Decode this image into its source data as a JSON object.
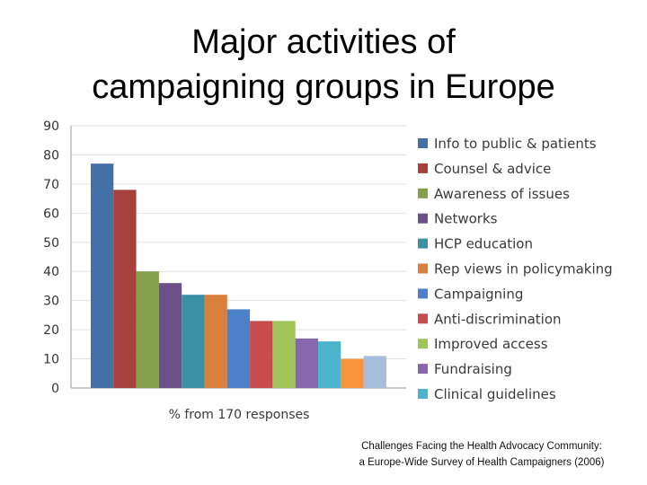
{
  "slide": {
    "title_line1": "Major activities of",
    "title_line2": "campaigning groups in Europe",
    "source_line1": "Challenges Facing the Health Advocacy Community:",
    "source_line2": "a Europe-Wide Survey of Health Campaigners (2006)"
  },
  "chart_data": {
    "type": "bar",
    "title": "",
    "xlabel": "% from 170 responses",
    "ylabel": "",
    "ylim": [
      0,
      90
    ],
    "yticks": [
      0,
      10,
      20,
      30,
      40,
      50,
      60,
      70,
      80,
      90
    ],
    "grid": true,
    "legend_position": "right",
    "series": [
      {
        "name": "Info to public & patients",
        "value": 77,
        "color": "#4470a8"
      },
      {
        "name": "Counsel & advice",
        "value": 68,
        "color": "#a8403c"
      },
      {
        "name": "Awareness of issues",
        "value": 40,
        "color": "#84a04a"
      },
      {
        "name": "Networks",
        "value": 36,
        "color": "#6c5088"
      },
      {
        "name": "HCP education",
        "value": 32,
        "color": "#3c90a4"
      },
      {
        "name": "Rep views in policymaking",
        "value": 32,
        "color": "#d8803c"
      },
      {
        "name": "Campaigning",
        "value": 27,
        "color": "#4c80c8"
      },
      {
        "name": "Anti-discrimination",
        "value": 23,
        "color": "#c84c4c"
      },
      {
        "name": "Improved access",
        "value": 23,
        "color": "#a0c458"
      },
      {
        "name": "Fundraising",
        "value": 17,
        "color": "#8868ac"
      },
      {
        "name": "Clinical guidelines",
        "value": 16,
        "color": "#4cb4cc"
      },
      {
        "name": "",
        "value": 10,
        "color": "#f8943c"
      },
      {
        "name": "",
        "value": 11,
        "color": "#a8bcdc"
      }
    ]
  }
}
